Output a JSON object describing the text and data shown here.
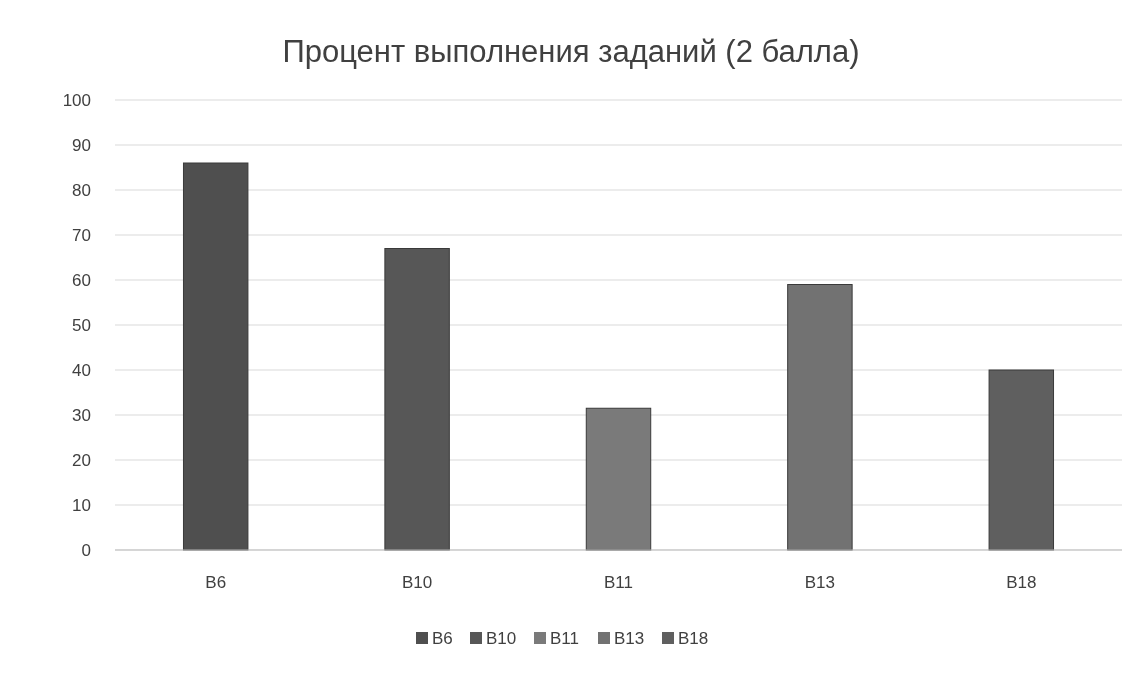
{
  "chart_data": {
    "type": "bar",
    "title": "Процент выполнения заданий (2 балла)",
    "categories": [
      "В6",
      "В10",
      "В11",
      "В13",
      "В18"
    ],
    "series": [
      {
        "name": "В6",
        "color": "#4f4f4f",
        "values": [
          86,
          null,
          null,
          null,
          null
        ]
      },
      {
        "name": "В10",
        "color": "#575757",
        "values": [
          null,
          67,
          null,
          null,
          null
        ]
      },
      {
        "name": "В11",
        "color": "#7a7a7a",
        "values": [
          null,
          null,
          31.5,
          null,
          null
        ]
      },
      {
        "name": "В13",
        "color": "#727272",
        "values": [
          null,
          null,
          null,
          59,
          null
        ]
      },
      {
        "name": "В18",
        "color": "#5f5f5f",
        "values": [
          null,
          null,
          null,
          null,
          40
        ]
      }
    ],
    "ylim": [
      0,
      100
    ],
    "yticks": [
      0,
      10,
      20,
      30,
      40,
      50,
      60,
      70,
      80,
      90,
      100
    ],
    "grid": "y",
    "legend": "bottom"
  }
}
